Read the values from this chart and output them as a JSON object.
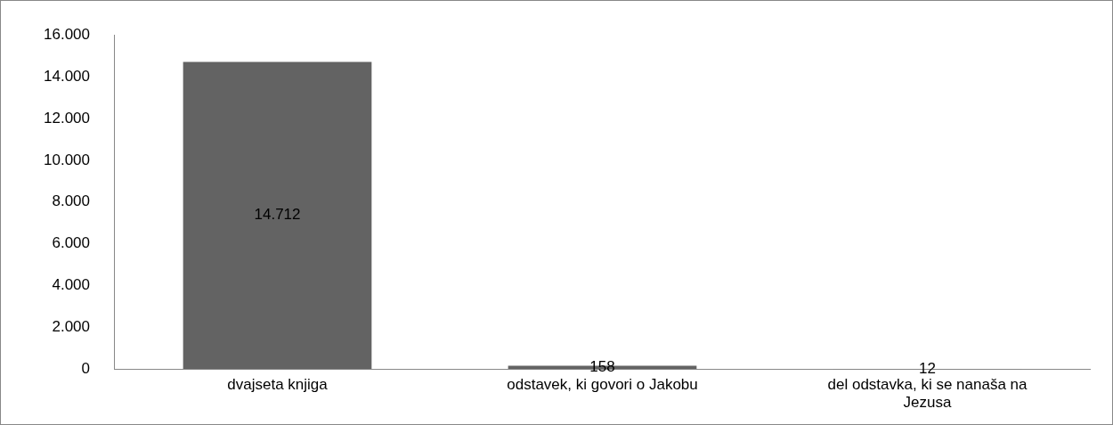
{
  "chart_data": {
    "type": "bar",
    "categories": [
      "dvajseta knjiga",
      "odstavek, ki govori o Jakobu",
      "del odstavka, ki se nanaša na Jezusa"
    ],
    "values": [
      14712,
      158,
      12
    ],
    "value_labels": [
      "14.712",
      "158",
      "12"
    ],
    "color": "#636363",
    "ylim": [
      0,
      16000
    ],
    "yticks": [
      {
        "value": 0,
        "label": "0"
      },
      {
        "value": 2000,
        "label": "2.000"
      },
      {
        "value": 4000,
        "label": "4.000"
      },
      {
        "value": 6000,
        "label": "6.000"
      },
      {
        "value": 8000,
        "label": "8.000"
      },
      {
        "value": 10000,
        "label": "10.000"
      },
      {
        "value": 12000,
        "label": "12.000"
      },
      {
        "value": 14000,
        "label": "14.000"
      },
      {
        "value": 16000,
        "label": "16.000"
      }
    ],
    "grid": false,
    "legend": false
  }
}
